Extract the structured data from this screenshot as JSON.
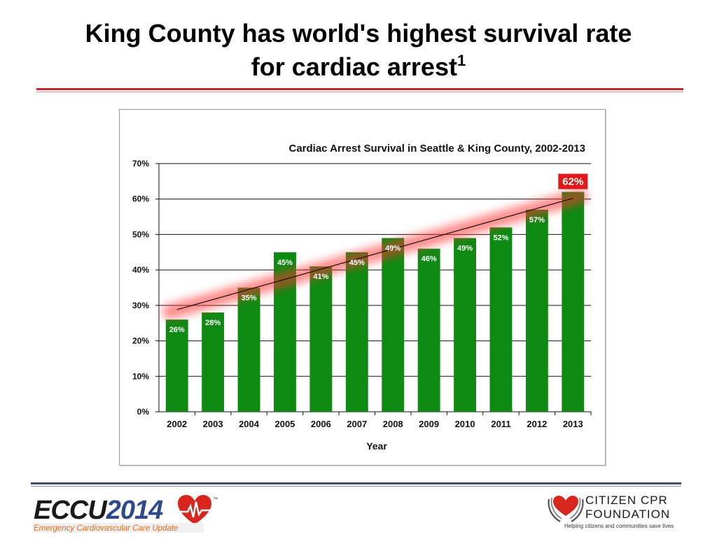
{
  "slide": {
    "title_line1": "King County has world's highest survival rate",
    "title_line2": "for cardiac arrest",
    "title_footnote": "1"
  },
  "chart_data": {
    "type": "bar",
    "title": "Cardiac Arrest Survival in Seattle & King County, 2002-2013",
    "xlabel": "Year",
    "ylabel": "",
    "categories": [
      "2002",
      "2003",
      "2004",
      "2005",
      "2006",
      "2007",
      "2008",
      "2009",
      "2010",
      "2011",
      "2012",
      "2013"
    ],
    "values": [
      26,
      28,
      35,
      45,
      41,
      45,
      49,
      46,
      49,
      52,
      57,
      62
    ],
    "data_labels": [
      "26%",
      "28%",
      "35%",
      "45%",
      "41%",
      "45%",
      "49%",
      "46%",
      "49%",
      "52%",
      "57%",
      "62%"
    ],
    "ylim": [
      0,
      70
    ],
    "yticks": [
      0,
      10,
      20,
      30,
      40,
      50,
      60,
      70
    ],
    "ytick_labels": [
      "0%",
      "10%",
      "20%",
      "30%",
      "40%",
      "50%",
      "60%",
      "70%"
    ],
    "grid": true,
    "trendline": {
      "start": 28.8,
      "end": 60.2
    },
    "highlight_index": 11,
    "colors": {
      "bar": "#0e8a12",
      "highlight_label_bg": "#e0191b",
      "trend_glow": "#ff3030"
    }
  },
  "footer": {
    "left_logo_text": "ECCU2014",
    "left_logo_part1": "ECCU",
    "left_logo_part2": "2014",
    "left_logo_tm": "™",
    "left_logo_subtitle": "Emergency Cardiovascular Care Update",
    "right_logo_name_line1": "CITIZEN CPR",
    "right_logo_name_line2": "FOUNDATION",
    "right_logo_tagline": "Helping citizens and communities save lives",
    "icons": [
      "heart-icon",
      "hands-heart-icon"
    ]
  }
}
